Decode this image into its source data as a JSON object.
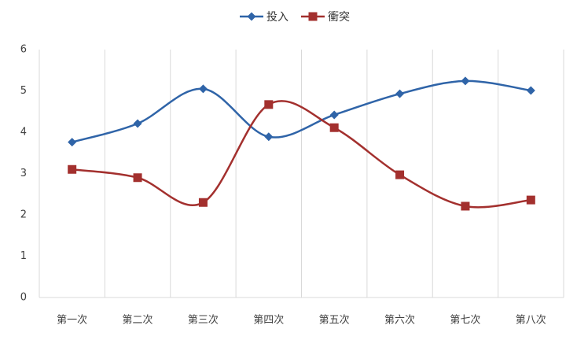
{
  "chart_data": {
    "type": "line",
    "categories": [
      "第一次",
      "第二次",
      "第三次",
      "第四次",
      "第五次",
      "第六次",
      "第七次",
      "第八次"
    ],
    "series": [
      {
        "name": "投入",
        "color": "#2f64a8",
        "marker": "diamond",
        "values": [
          3.76,
          4.21,
          5.05,
          3.89,
          4.42,
          4.93,
          5.24,
          5.01
        ]
      },
      {
        "name": "衝突",
        "color": "#a3302e",
        "marker": "square",
        "values": [
          3.1,
          2.9,
          2.3,
          4.67,
          4.11,
          2.97,
          2.21,
          2.36
        ]
      }
    ],
    "ylim": [
      0,
      6
    ],
    "yticks": [
      0,
      1,
      2,
      3,
      4,
      5,
      6
    ],
    "smooth": true,
    "grid": "vertical",
    "legend": "top"
  }
}
